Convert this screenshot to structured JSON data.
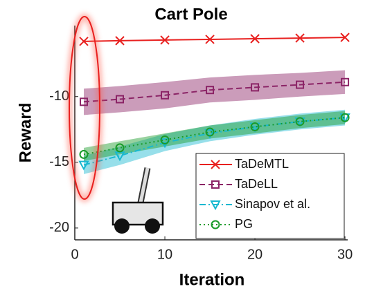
{
  "chart_data": {
    "type": "line",
    "title": "Cart Pole",
    "x_label": "Iteration",
    "y_label": "Reward",
    "x": [
      1,
      5,
      10,
      15,
      20,
      25,
      30
    ],
    "xlim": [
      0,
      30.3
    ],
    "xticks": [
      0,
      10,
      20,
      30
    ],
    "ylim": [
      -20.9,
      -4.6
    ],
    "yticks": [
      -10,
      -15,
      -20
    ],
    "legend": "lower right",
    "series": [
      {
        "name": "TaDeMTL",
        "color": "#e8201f",
        "dash": "solid",
        "marker": "x",
        "values": [
          -5.8,
          -5.75,
          -5.7,
          -5.65,
          -5.6,
          -5.55,
          -5.5
        ]
      },
      {
        "name": "TaDeLL",
        "color": "#8b2466",
        "dash": "dashed",
        "marker": "square",
        "values": [
          -10.4,
          -10.2,
          -9.9,
          -9.5,
          -9.3,
          -9.1,
          -8.9
        ],
        "errors": [
          1.0,
          1.0,
          1.0,
          0.95,
          0.95,
          0.9,
          0.9
        ]
      },
      {
        "name": "Sinapov et al.",
        "color": "#18b8d0",
        "dash": "dashdot",
        "marker": "triangle-down",
        "values": [
          -15.2,
          -14.5,
          -13.5,
          -12.8,
          -12.3,
          -11.9,
          -11.6
        ],
        "errors": [
          0.7,
          0.7,
          0.65,
          0.6,
          0.6,
          0.6,
          0.6
        ]
      },
      {
        "name": "PG",
        "color": "#1a9b2a",
        "dash": "dotted",
        "marker": "circle",
        "values": [
          -14.4,
          -13.9,
          -13.3,
          -12.7,
          -12.3,
          -11.9,
          -11.6
        ],
        "errors": [
          0.5,
          0.5,
          0.5,
          0.5,
          0.5,
          0.5,
          0.5
        ]
      }
    ]
  }
}
